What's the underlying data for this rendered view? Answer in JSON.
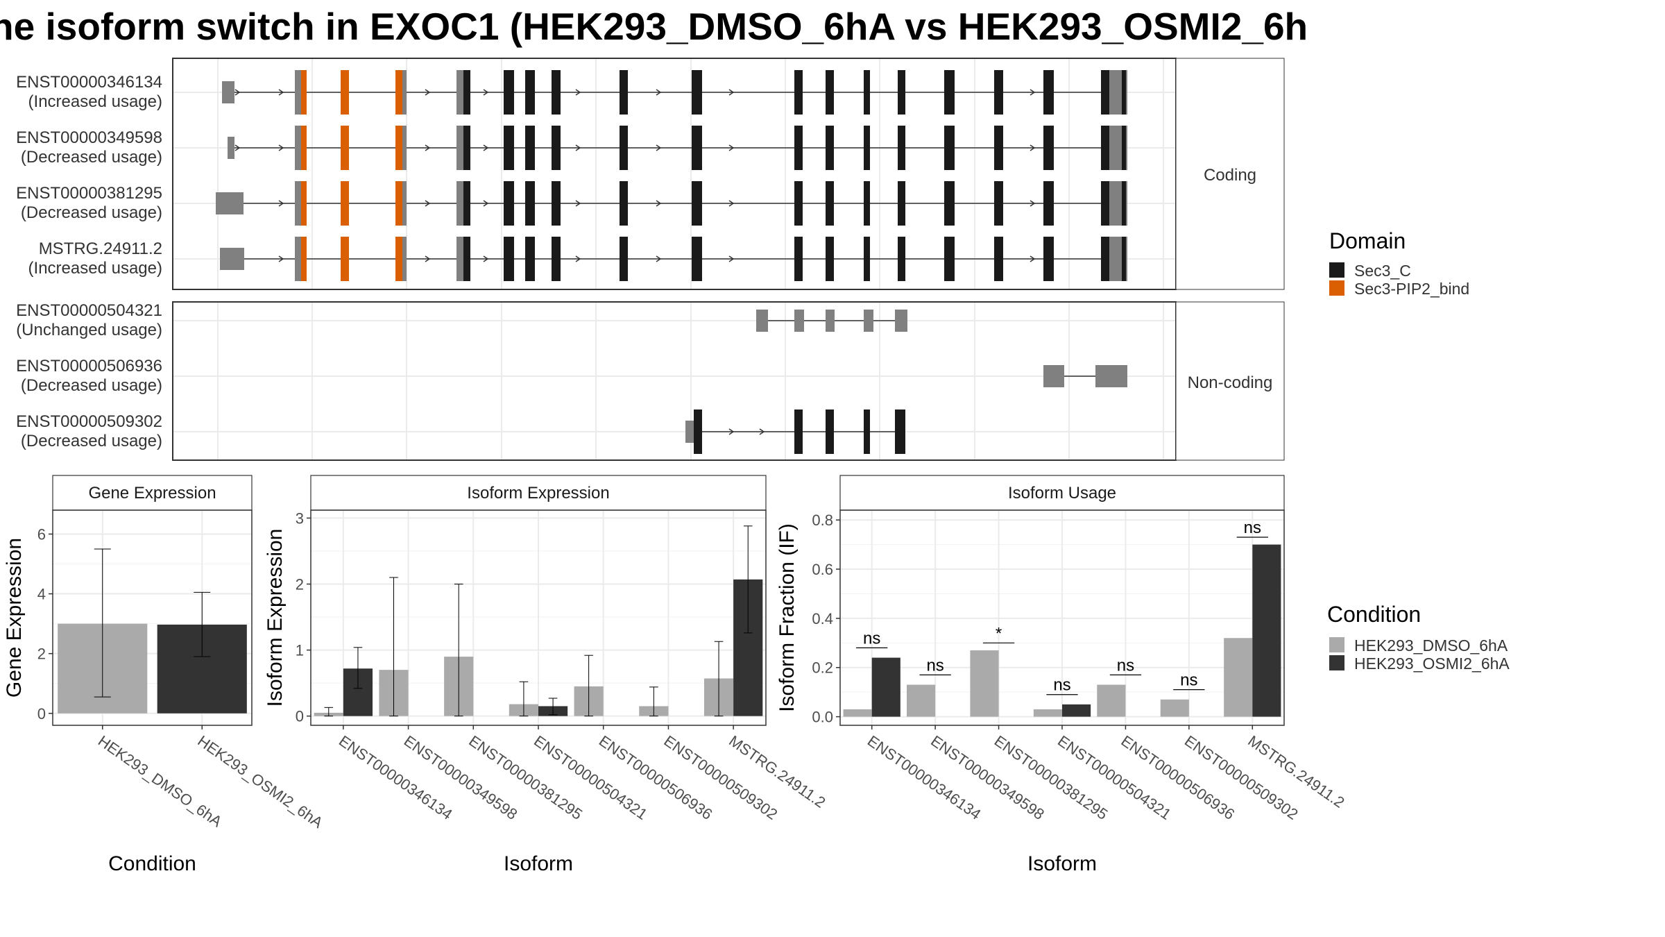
{
  "title": "he isoform switch in EXOC1 (HEK293_DMSO_6hA vs HEK293_OSMI2_6h",
  "colors": {
    "dmso": "#aaaaaa",
    "osmi2": "#333333",
    "sec3c": "#1a1a1a",
    "pip2": "#d95f02",
    "utr": "#808080",
    "intron": "#333333",
    "grid": "#ebebeb",
    "strip_bg": "#ffffff"
  },
  "structure_panels": [
    {
      "strip": "Coding",
      "rows": [
        {
          "id": "ENST00000346134",
          "status": "(Increased usage)"
        },
        {
          "id": "ENST00000349598",
          "status": "(Decreased usage)"
        },
        {
          "id": "ENST00000381295",
          "status": "(Decreased usage)"
        },
        {
          "id": "MSTRG.24911.2",
          "status": "(Increased usage)"
        }
      ]
    },
    {
      "strip": "Non-coding",
      "rows": [
        {
          "id": "ENST00000504321",
          "status": "(Unchanged usage)"
        },
        {
          "id": "ENST00000506936",
          "status": "(Decreased usage)"
        },
        {
          "id": "ENST00000509302",
          "status": "(Decreased usage)"
        }
      ]
    }
  ],
  "domain_legend": {
    "title": "Domain",
    "items": [
      {
        "label": "Sec3_C",
        "color": "#1a1a1a"
      },
      {
        "label": "Sec3-PIP2_bind",
        "color": "#d95f02"
      }
    ]
  },
  "condition_legend": {
    "title": "Condition",
    "items": [
      {
        "label": "HEK293_DMSO_6hA",
        "color": "#aaaaaa"
      },
      {
        "label": "HEK293_OSMI2_6hA",
        "color": "#333333"
      }
    ]
  },
  "chart_data": [
    {
      "type": "bar",
      "strip": "Gene Expression",
      "xlabel": "Condition",
      "ylabel": "Gene Expression",
      "ylim": [
        -0.4,
        6.8
      ],
      "yticks": [
        0,
        2,
        4,
        6
      ],
      "categories": [
        "HEK293_DMSO_6hA",
        "HEK293_OSMI2_6hA"
      ],
      "values": [
        3.0,
        2.97
      ],
      "errors_low": [
        0.55,
        1.9
      ],
      "errors_high": [
        5.5,
        4.05
      ]
    },
    {
      "type": "bar",
      "strip": "Isoform Expression",
      "xlabel": "Isoform",
      "ylabel": "Isoform Expression",
      "ylim": [
        -0.14,
        3.12
      ],
      "yticks": [
        0,
        1,
        2,
        3
      ],
      "categories": [
        "ENST00000346134",
        "ENST00000349598",
        "ENST00000381295",
        "ENST00000504321",
        "ENST00000506936",
        "ENST00000509302",
        "MSTRG.24911.2"
      ],
      "series": [
        {
          "name": "HEK293_DMSO_6hA",
          "values": [
            0.05,
            0.7,
            0.9,
            0.18,
            0.45,
            0.15,
            0.57
          ],
          "errors_low": [
            0.0,
            0.0,
            0.0,
            0.0,
            0.0,
            0.0,
            0.0
          ],
          "errors_high": [
            0.13,
            2.1,
            2.0,
            0.52,
            0.92,
            0.44,
            1.13
          ]
        },
        {
          "name": "HEK293_OSMI2_6hA",
          "values": [
            0.72,
            0.0,
            0.0,
            0.15,
            0.0,
            0.0,
            2.07
          ],
          "errors_low": [
            0.42,
            0.0,
            0.0,
            0.02,
            0.0,
            0.0,
            1.26
          ],
          "errors_high": [
            1.04,
            0.0,
            0.0,
            0.27,
            0.0,
            0.0,
            2.88
          ]
        }
      ]
    },
    {
      "type": "bar",
      "strip": "Isoform Usage",
      "xlabel": "Isoform",
      "ylabel": "Isoform Fraction (IF)",
      "ylim": [
        -0.035,
        0.84
      ],
      "yticks": [
        0.0,
        0.2,
        0.4,
        0.6,
        0.8
      ],
      "ytick_labels": [
        "0.0",
        "0.2",
        "0.4",
        "0.6",
        "0.8"
      ],
      "categories": [
        "ENST00000346134",
        "ENST00000349598",
        "ENST00000381295",
        "ENST00000504321",
        "ENST00000506936",
        "ENST00000509302",
        "MSTRG.24911.2"
      ],
      "series": [
        {
          "name": "HEK293_DMSO_6hA",
          "values": [
            0.03,
            0.13,
            0.27,
            0.03,
            0.13,
            0.07,
            0.32
          ]
        },
        {
          "name": "HEK293_OSMI2_6hA",
          "values": [
            0.24,
            0.0,
            0.0,
            0.05,
            0.0,
            0.0,
            0.7
          ]
        }
      ],
      "significance": [
        "ns",
        "ns",
        "*",
        "ns",
        "ns",
        "ns",
        "ns"
      ],
      "significance_y": [
        0.28,
        0.17,
        0.3,
        0.09,
        0.17,
        0.11,
        0.73
      ]
    }
  ]
}
